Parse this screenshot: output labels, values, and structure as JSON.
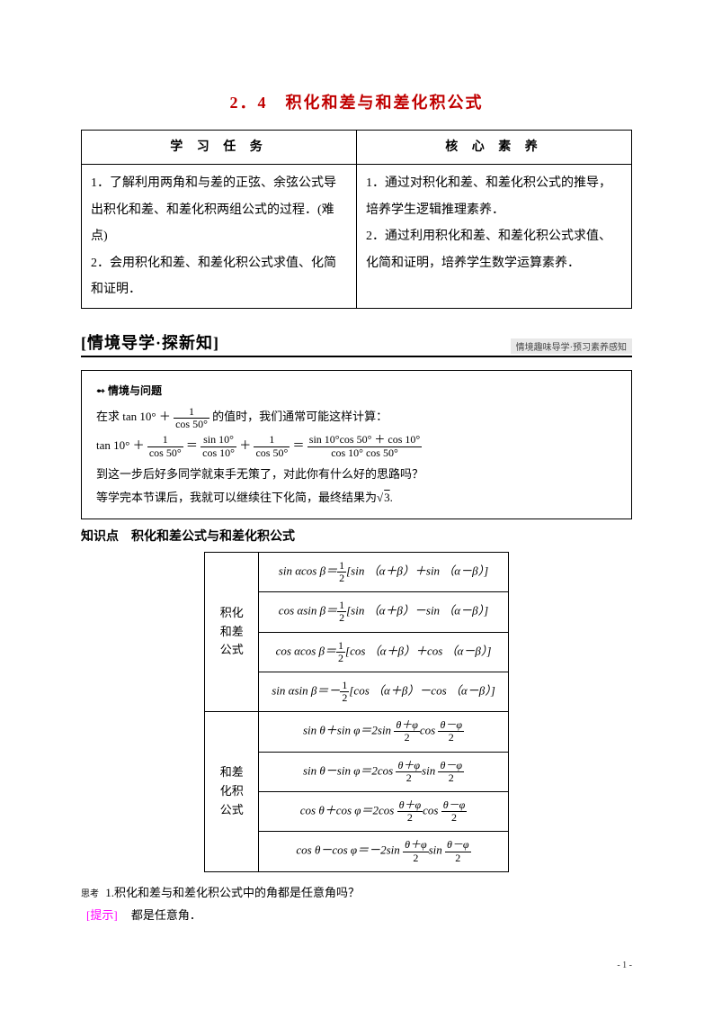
{
  "colors": {
    "title": "#c00000",
    "text": "#000000",
    "bg": "#ffffff",
    "hint": "#ff00ff",
    "subnote_bg": "#e8e8e8",
    "border": "#000000"
  },
  "fontsizes": {
    "title": 18,
    "body": 14,
    "formula": 13,
    "small": 10
  },
  "title": "2．4　积化和差与和差化积公式",
  "objectives": {
    "headers": [
      "学 习 任 务",
      "核 心 素 养"
    ],
    "left": "1．了解利用两角和与差的正弦、余弦公式导出积化和差、和差化积两组公式的过程．(难点)\n2．会用积化和差、和差化积公式求值、化简和证明．",
    "right": "1．通过对积化和差、和差化积公式的推导，培养学生逻辑推理素养．\n2．通过利用积化和差、和差化积公式求值、化简和证明，培养学生数学运算素养．"
  },
  "section": {
    "left": "[情境导学·探新知]",
    "right": "情境趣味导学·预习素养感知"
  },
  "scenario": {
    "head": "➻ 情境与问题",
    "line1_pre": "在求 tan 10° ＋",
    "line1_frac_num": "1",
    "line1_frac_den": "cos 50°",
    "line1_post": "的值时，我们通常可能这样计算：",
    "line2_lhs_a": "tan 10° ＋",
    "line2_f1_num": "1",
    "line2_f1_den": "cos 50°",
    "line2_eq1": "＝",
    "line2_f2_num": "sin 10°",
    "line2_f2_den": "cos 10°",
    "line2_plus": "＋",
    "line2_f3_num": "1",
    "line2_f3_den": "cos 50°",
    "line2_eq2": "＝",
    "line2_f4_num": "sin 10°cos 50° ＋ cos 10°",
    "line2_f4_den": "cos 10° cos 50°",
    "line3": "到这一步后好多同学就束手无策了，对此你有什么好的思路吗？",
    "line4_pre": "等学完本节课后，我就可以继续往下化简，最终结果为",
    "line4_sqrt": "3",
    "line4_post": "."
  },
  "kp_title": "知识点　积化和差公式与和差化积公式",
  "formulas": {
    "group1_label": "积化和差公式",
    "group2_label": "和差化积公式",
    "rows1": [
      {
        "lhs": "sin αcos β＝",
        "half": "1",
        "den": "2",
        "rhs": "[sin （α＋β）＋sin （α－β）]"
      },
      {
        "lhs": "cos αsin β＝",
        "half": "1",
        "den": "2",
        "rhs": "[sin （α＋β）－sin （α－β）]"
      },
      {
        "lhs": "cos αcos β＝",
        "half": "1",
        "den": "2",
        "rhs": "[cos （α＋β）＋cos （α－β）]"
      },
      {
        "lhs": "sin αsin β＝－",
        "half": "1",
        "den": "2",
        "rhs": "[cos （α＋β）－cos （α－β）]"
      }
    ],
    "rows2": [
      {
        "lhs": "sin θ＋sin φ＝2sin ",
        "n1": "θ＋φ",
        "d1": "2",
        "mid": "cos ",
        "n2": "θ－φ",
        "d2": "2"
      },
      {
        "lhs": "sin θ－sin φ＝2cos ",
        "n1": "θ＋φ",
        "d1": "2",
        "mid": "sin ",
        "n2": "θ－φ",
        "d2": "2"
      },
      {
        "lhs": "cos θ＋cos φ＝2cos ",
        "n1": "θ＋φ",
        "d1": "2",
        "mid": "cos ",
        "n2": "θ－φ",
        "d2": "2"
      },
      {
        "lhs": "cos θ－cos φ＝－2sin ",
        "n1": "θ＋φ",
        "d1": "2",
        "mid": "sin ",
        "n2": "θ－φ",
        "d2": "2"
      }
    ]
  },
  "think": {
    "label": "思考",
    "text": "1.积化和差与和差化积公式中的角都是任意角吗？"
  },
  "hint": {
    "label": "[提示]",
    "text": "都是任意角．"
  },
  "pagenum": "- 1 -"
}
